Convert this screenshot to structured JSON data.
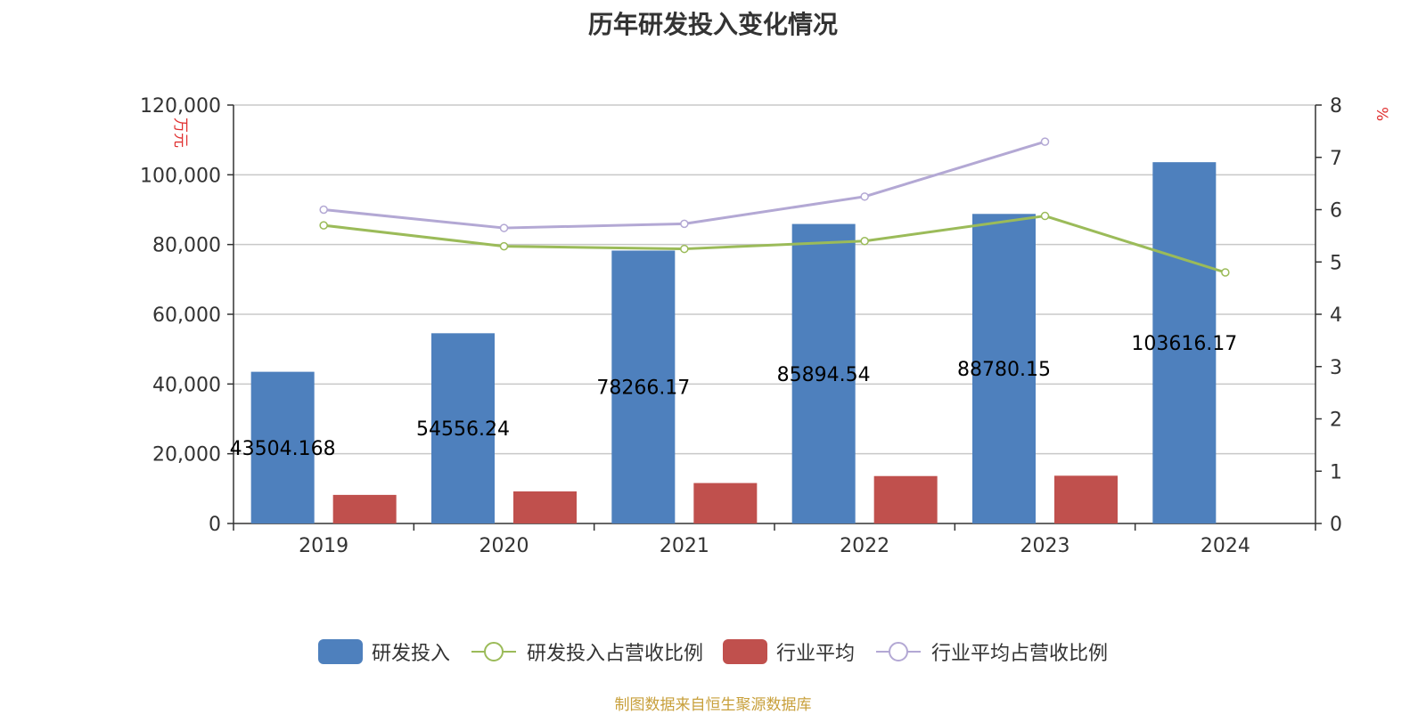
{
  "source_note": "制图数据来自恒生聚源数据库",
  "chart_data": {
    "type": "bar",
    "title": "历年研发投入变化情况",
    "categories": [
      "2019",
      "2020",
      "2021",
      "2022",
      "2023",
      "2024"
    ],
    "y_left": {
      "label": "万元",
      "min": 0,
      "max": 120000,
      "ticks": [
        "0",
        "20,000",
        "40,000",
        "60,000",
        "80,000",
        "100,000",
        "120,000"
      ]
    },
    "y_right": {
      "label": "%",
      "min": 0,
      "max": 8,
      "ticks": [
        "0",
        "1",
        "2",
        "3",
        "4",
        "5",
        "6",
        "7",
        "8"
      ]
    },
    "series": [
      {
        "name": "研发投入",
        "type": "bar",
        "axis": "left",
        "color": "#4e80bd",
        "values": [
          43504.168,
          54556.24,
          78266.17,
          85894.54,
          88780.15,
          103616.17
        ],
        "labels": [
          "43504.168",
          "54556.24",
          "78266.17",
          "85894.54",
          "88780.15",
          "103616.17"
        ]
      },
      {
        "name": "研发投入占营收比例",
        "type": "line",
        "axis": "right",
        "color": "#9bbb59",
        "values": [
          5.7,
          5.3,
          5.25,
          5.4,
          5.88,
          4.8
        ]
      },
      {
        "name": "行业平均",
        "type": "bar",
        "axis": "left",
        "color": "#c0504d",
        "values": [
          8200,
          9200,
          11600,
          13600,
          13700,
          null
        ]
      },
      {
        "name": "行业平均占营收比例",
        "type": "line",
        "axis": "right",
        "color": "#b3a8d4",
        "values": [
          6.0,
          5.65,
          5.73,
          6.25,
          7.3,
          null
        ]
      }
    ],
    "grid": true,
    "legend_position": "bottom"
  }
}
